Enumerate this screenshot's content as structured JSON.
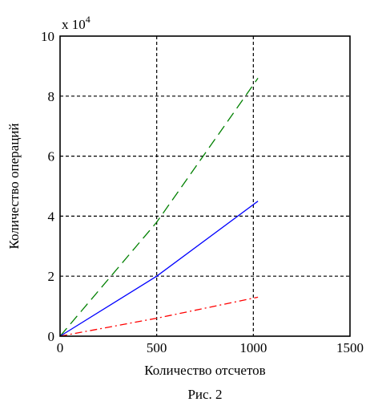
{
  "chart_data": {
    "type": "line",
    "xlabel": "Количество отсчетов",
    "ylabel": "Количество операций",
    "y_multiplier": "x 10",
    "y_multiplier_exponent": "4",
    "caption": "Рис. 2",
    "xlim": [
      0,
      1500
    ],
    "ylim": [
      0,
      10
    ],
    "x_ticks": [
      "0",
      "500",
      "1000",
      "1500"
    ],
    "y_ticks": [
      "0",
      "2",
      "4",
      "6",
      "8",
      "10"
    ],
    "grid": true,
    "series": [
      {
        "color": "#008000",
        "line_style": "dashed",
        "x": [
          0,
          500,
          1024
        ],
        "y": [
          0,
          3.8,
          8.6
        ]
      },
      {
        "color": "#0000ff",
        "line_style": "solid",
        "x": [
          0,
          500,
          1024
        ],
        "y": [
          0,
          2.0,
          4.5
        ]
      },
      {
        "color": "#ff0000",
        "line_style": "dash-dot",
        "x": [
          0,
          500,
          1024
        ],
        "y": [
          0,
          0.6,
          1.3
        ]
      }
    ]
  }
}
